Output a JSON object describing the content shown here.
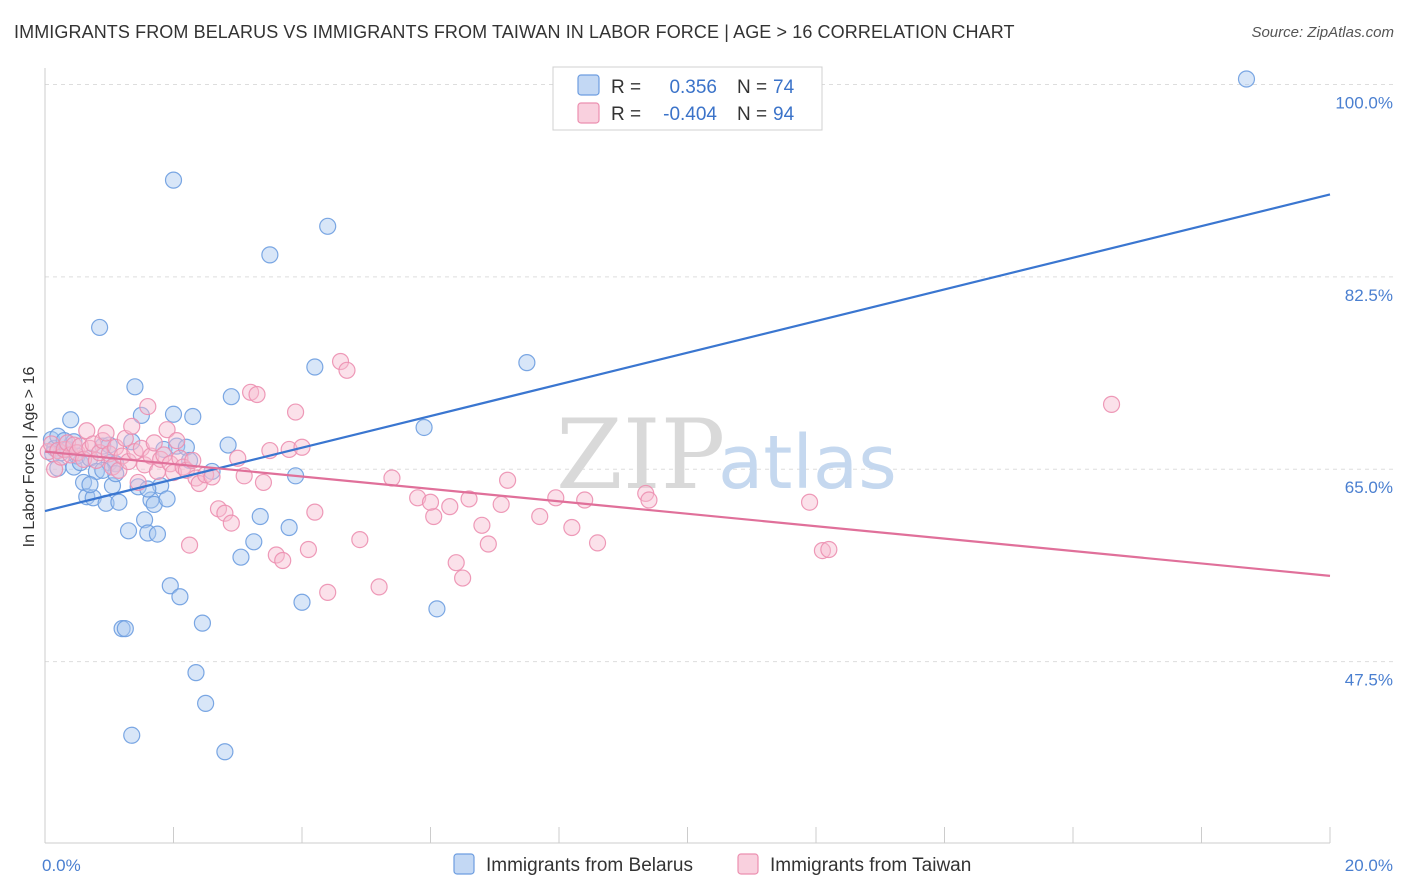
{
  "title": "IMMIGRANTS FROM BELARUS VS IMMIGRANTS FROM TAIWAN IN LABOR FORCE | AGE > 16 CORRELATION CHART",
  "source": "Source: ZipAtlas.com",
  "watermark": {
    "zip": "ZIP",
    "atlas": "atlas"
  },
  "stats": {
    "belarus": {
      "r_label": "R =",
      "r_value": "0.356",
      "n_label": "N =",
      "n_value": "74"
    },
    "taiwan": {
      "r_label": "R =",
      "r_value": "-0.404",
      "n_label": "N =",
      "n_value": "94"
    }
  },
  "colors": {
    "belarus_fill": "#a9c8f0",
    "belarus_stroke": "#6d9de0",
    "belarus_line": "#3a76d0",
    "taiwan_fill": "#f7bcd0",
    "taiwan_stroke": "#ec8fb0",
    "taiwan_line": "#e0709a",
    "grid": "#dddddd",
    "axis_text": "#4a7fd0"
  },
  "chart_data": {
    "type": "scatter",
    "title": "IMMIGRANTS FROM BELARUS VS IMMIGRANTS FROM TAIWAN IN LABOR FORCE | AGE > 16 CORRELATION CHART",
    "xlabel": "",
    "ylabel": "In Labor Force | Age > 16",
    "xlim": [
      0,
      20
    ],
    "ylim": [
      31.0,
      101.5
    ],
    "x_tick_labels": [
      {
        "value": 0,
        "label": "0.0%"
      },
      {
        "value": 20,
        "label": "20.0%"
      }
    ],
    "y_tick_labels": [
      {
        "value": 100,
        "label": "100.0%"
      },
      {
        "value": 82.5,
        "label": "82.5%"
      },
      {
        "value": 65,
        "label": "65.0%"
      },
      {
        "value": 47.5,
        "label": "47.5%"
      }
    ],
    "grid": true,
    "legend_position": "bottom-center",
    "series": [
      {
        "name": "Immigrants from Belarus",
        "trend": {
          "x": [
            0,
            20
          ],
          "y": [
            61.2,
            90.0
          ]
        },
        "points": [
          [
            0.1,
            67.7
          ],
          [
            0.15,
            66.9
          ],
          [
            0.2,
            68.0
          ],
          [
            0.25,
            66.5
          ],
          [
            0.3,
            67.6
          ],
          [
            0.35,
            66.8
          ],
          [
            0.4,
            69.5
          ],
          [
            0.45,
            65.2
          ],
          [
            0.5,
            66.2
          ],
          [
            0.55,
            65.6
          ],
          [
            0.6,
            63.8
          ],
          [
            0.65,
            62.5
          ],
          [
            0.7,
            66.0
          ],
          [
            0.75,
            62.4
          ],
          [
            0.8,
            64.8
          ],
          [
            0.85,
            77.9
          ],
          [
            0.9,
            67.1
          ],
          [
            0.95,
            61.9
          ],
          [
            1.0,
            65.6
          ],
          [
            1.0,
            67.2
          ],
          [
            1.05,
            63.5
          ],
          [
            1.1,
            65.5
          ],
          [
            1.1,
            64.6
          ],
          [
            1.15,
            62.0
          ],
          [
            1.2,
            50.5
          ],
          [
            1.25,
            50.5
          ],
          [
            1.3,
            59.4
          ],
          [
            1.35,
            67.5
          ],
          [
            1.4,
            72.5
          ],
          [
            1.45,
            63.4
          ],
          [
            1.5,
            69.9
          ],
          [
            1.55,
            60.4
          ],
          [
            1.6,
            59.2
          ],
          [
            1.65,
            62.2
          ],
          [
            1.7,
            61.8
          ],
          [
            1.75,
            59.1
          ],
          [
            1.8,
            63.5
          ],
          [
            1.85,
            66.8
          ],
          [
            1.9,
            62.3
          ],
          [
            1.95,
            54.4
          ],
          [
            2.0,
            70.0
          ],
          [
            2.05,
            67.1
          ],
          [
            2.0,
            91.3
          ],
          [
            2.1,
            53.4
          ],
          [
            2.2,
            67.0
          ],
          [
            2.3,
            69.8
          ],
          [
            2.35,
            46.5
          ],
          [
            2.45,
            51.0
          ],
          [
            2.5,
            43.7
          ],
          [
            2.8,
            39.3
          ],
          [
            2.85,
            67.2
          ],
          [
            2.9,
            71.6
          ],
          [
            3.05,
            57.0
          ],
          [
            3.25,
            58.4
          ],
          [
            3.35,
            60.7
          ],
          [
            3.5,
            84.5
          ],
          [
            3.8,
            59.7
          ],
          [
            3.9,
            64.4
          ],
          [
            4.0,
            52.9
          ],
          [
            4.2,
            74.3
          ],
          [
            4.4,
            87.1
          ],
          [
            5.9,
            68.8
          ],
          [
            6.1,
            52.3
          ],
          [
            7.5,
            74.7
          ],
          [
            18.7,
            100.5
          ],
          [
            0.2,
            65.1
          ],
          [
            0.45,
            67.5
          ],
          [
            0.7,
            63.6
          ],
          [
            1.35,
            40.8
          ],
          [
            1.6,
            63.2
          ],
          [
            2.25,
            65.8
          ],
          [
            2.6,
            64.8
          ],
          [
            0.12,
            66.4
          ],
          [
            0.9,
            64.9
          ]
        ]
      },
      {
        "name": "Immigrants from Taiwan",
        "trend": {
          "x": [
            0,
            20
          ],
          "y": [
            66.6,
            55.3
          ]
        },
        "points": [
          [
            0.05,
            66.6
          ],
          [
            0.1,
            67.3
          ],
          [
            0.15,
            65.0
          ],
          [
            0.2,
            66.7
          ],
          [
            0.25,
            66.1
          ],
          [
            0.3,
            66.8
          ],
          [
            0.35,
            67.4
          ],
          [
            0.4,
            66.3
          ],
          [
            0.45,
            67.2
          ],
          [
            0.5,
            66.5
          ],
          [
            0.55,
            67.1
          ],
          [
            0.6,
            65.9
          ],
          [
            0.65,
            68.5
          ],
          [
            0.7,
            66.9
          ],
          [
            0.75,
            67.3
          ],
          [
            0.8,
            65.8
          ],
          [
            0.85,
            66.5
          ],
          [
            0.9,
            67.6
          ],
          [
            0.95,
            68.3
          ],
          [
            1.0,
            66.4
          ],
          [
            1.05,
            65.2
          ],
          [
            1.1,
            67.0
          ],
          [
            1.15,
            64.9
          ],
          [
            1.2,
            66.2
          ],
          [
            1.25,
            67.8
          ],
          [
            1.3,
            65.7
          ],
          [
            1.35,
            68.9
          ],
          [
            1.4,
            66.6
          ],
          [
            1.45,
            63.8
          ],
          [
            1.5,
            66.9
          ],
          [
            1.55,
            65.4
          ],
          [
            1.6,
            70.7
          ],
          [
            1.65,
            66.2
          ],
          [
            1.7,
            67.4
          ],
          [
            1.75,
            64.8
          ],
          [
            1.8,
            65.9
          ],
          [
            1.85,
            66.3
          ],
          [
            1.9,
            68.6
          ],
          [
            1.95,
            65.5
          ],
          [
            2.0,
            64.7
          ],
          [
            2.05,
            67.6
          ],
          [
            2.1,
            66.0
          ],
          [
            2.15,
            65.2
          ],
          [
            2.2,
            64.9
          ],
          [
            2.25,
            58.1
          ],
          [
            2.3,
            65.8
          ],
          [
            2.35,
            64.2
          ],
          [
            2.4,
            63.7
          ],
          [
            2.5,
            64.5
          ],
          [
            2.6,
            64.3
          ],
          [
            2.7,
            61.4
          ],
          [
            2.8,
            61.0
          ],
          [
            2.9,
            60.1
          ],
          [
            3.0,
            66.0
          ],
          [
            3.1,
            64.4
          ],
          [
            3.2,
            72.0
          ],
          [
            3.3,
            71.8
          ],
          [
            3.4,
            63.8
          ],
          [
            3.5,
            66.7
          ],
          [
            3.6,
            57.2
          ],
          [
            3.7,
            56.7
          ],
          [
            3.8,
            66.8
          ],
          [
            3.9,
            70.2
          ],
          [
            4.1,
            57.7
          ],
          [
            4.2,
            61.1
          ],
          [
            4.4,
            53.8
          ],
          [
            4.6,
            74.8
          ],
          [
            4.7,
            74.0
          ],
          [
            4.9,
            58.6
          ],
          [
            5.2,
            54.3
          ],
          [
            5.4,
            64.2
          ],
          [
            5.8,
            62.4
          ],
          [
            6.05,
            60.7
          ],
          [
            6.3,
            61.6
          ],
          [
            6.4,
            56.5
          ],
          [
            6.5,
            55.1
          ],
          [
            6.6,
            62.3
          ],
          [
            6.8,
            59.9
          ],
          [
            6.9,
            58.2
          ],
          [
            7.1,
            61.8
          ],
          [
            7.7,
            60.7
          ],
          [
            7.95,
            62.4
          ],
          [
            8.2,
            59.7
          ],
          [
            8.4,
            62.2
          ],
          [
            8.6,
            58.3
          ],
          [
            9.35,
            62.8
          ],
          [
            9.4,
            62.2
          ],
          [
            11.9,
            62.0
          ],
          [
            12.1,
            57.6
          ],
          [
            12.2,
            57.7
          ],
          [
            16.6,
            70.9
          ],
          [
            4.0,
            67.0
          ],
          [
            6.0,
            62.0
          ],
          [
            7.2,
            64.0
          ]
        ]
      }
    ]
  },
  "legend": {
    "items": [
      {
        "label": "Immigrants from Belarus"
      },
      {
        "label": "Immigrants from Taiwan"
      }
    ]
  }
}
